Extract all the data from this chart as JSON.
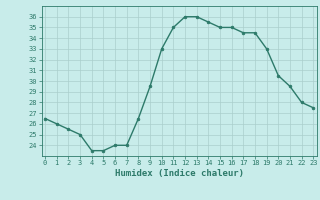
{
  "x": [
    0,
    1,
    2,
    3,
    4,
    5,
    6,
    7,
    8,
    9,
    10,
    11,
    12,
    13,
    14,
    15,
    16,
    17,
    18,
    19,
    20,
    21,
    22,
    23
  ],
  "y": [
    26.5,
    26.0,
    25.5,
    25.0,
    23.5,
    23.5,
    24.0,
    24.0,
    26.5,
    29.5,
    33.0,
    35.0,
    36.0,
    36.0,
    35.5,
    35.0,
    35.0,
    34.5,
    34.5,
    33.0,
    30.5,
    29.5,
    28.0,
    27.5
  ],
  "line_color": "#2d7a6a",
  "marker": "o",
  "marker_size": 2.0,
  "bg_color": "#c8ecea",
  "grid_color": "#aacfcc",
  "tick_color": "#2d7a6a",
  "label_color": "#2d7a6a",
  "xlabel": "Humidex (Indice chaleur)",
  "ylim": [
    23.0,
    37.0
  ],
  "yticks": [
    24,
    25,
    26,
    27,
    28,
    29,
    30,
    31,
    32,
    33,
    34,
    35,
    36
  ],
  "xticks": [
    0,
    1,
    2,
    3,
    4,
    5,
    6,
    7,
    8,
    9,
    10,
    11,
    12,
    13,
    14,
    15,
    16,
    17,
    18,
    19,
    20,
    21,
    22,
    23
  ],
  "xlim": [
    -0.3,
    23.3
  ]
}
